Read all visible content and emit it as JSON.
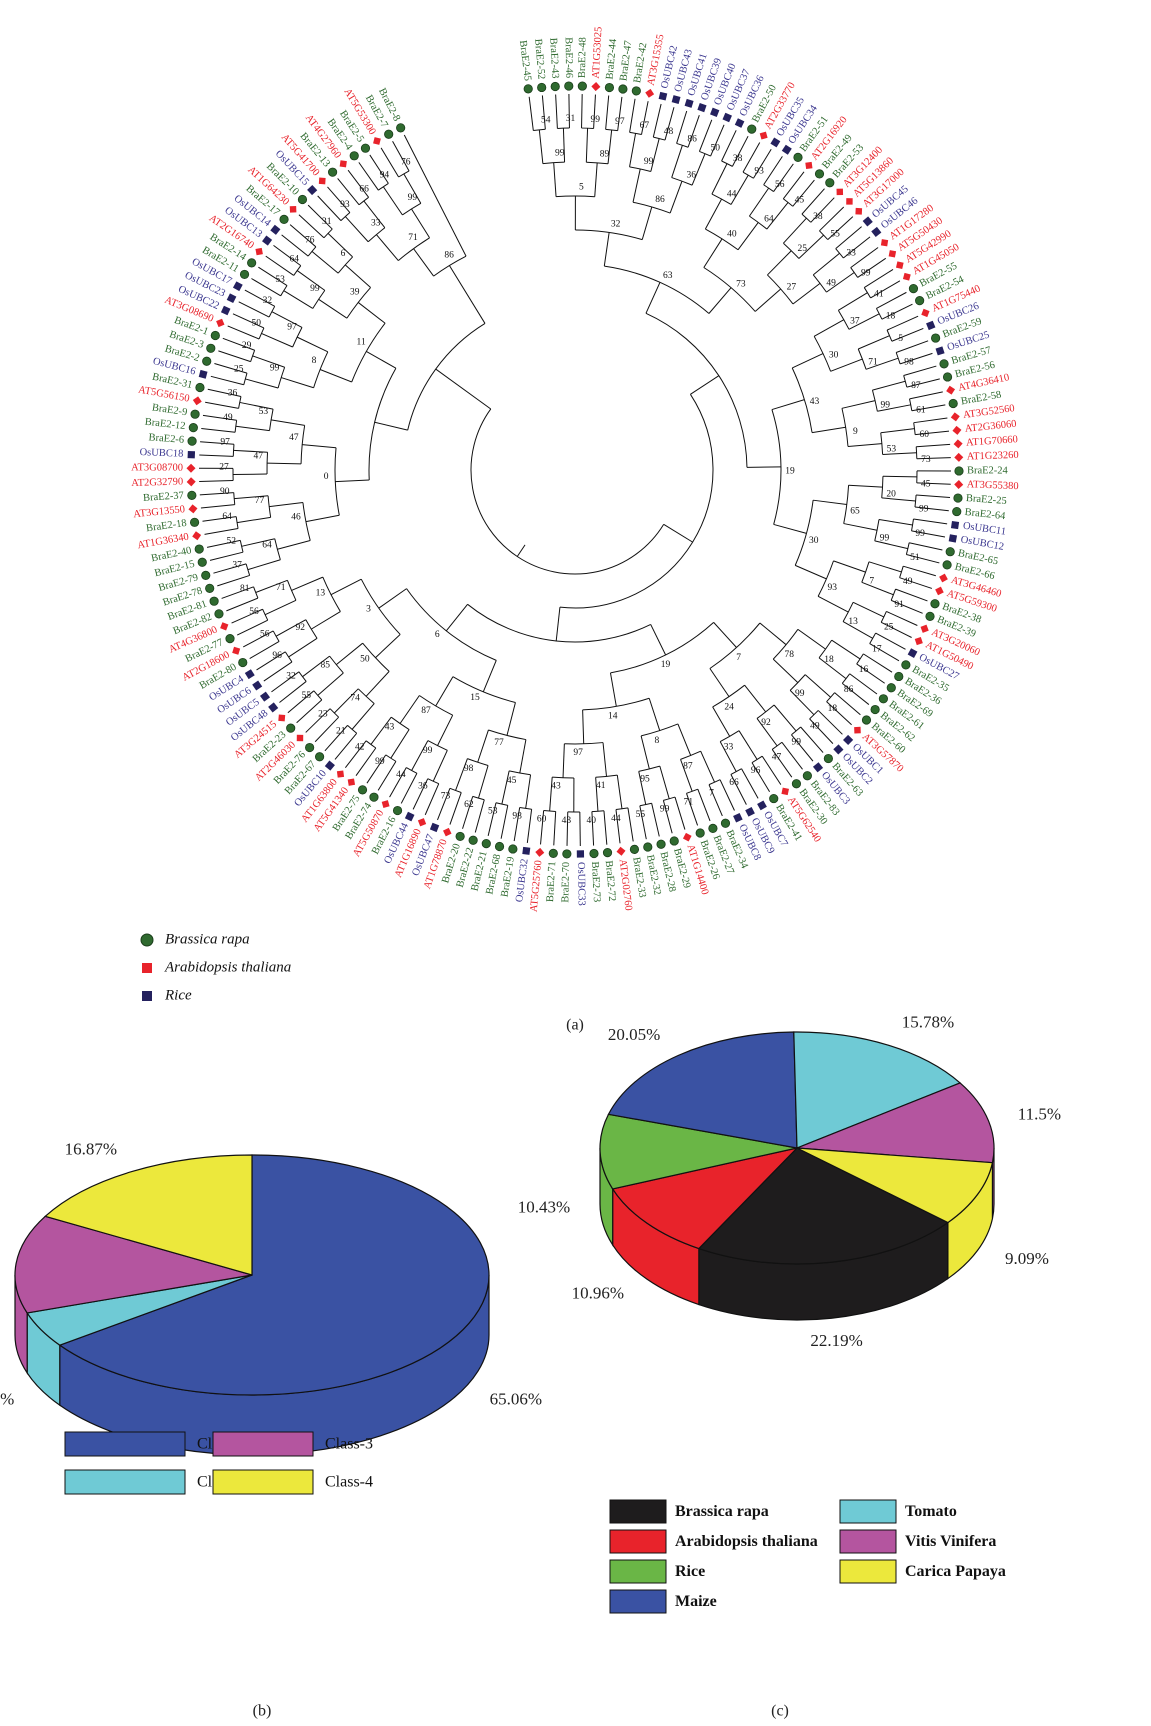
{
  "chart_data": [
    {
      "type": "tree",
      "caption": "(a)",
      "legend": [
        {
          "name": "Brassica rapa",
          "color": "#2f6a2f"
        },
        {
          "name": "Arabidopsis thaliana",
          "color": "#e8232b"
        },
        {
          "name": "Rice",
          "color": "#24215e"
        }
      ],
      "label_colors": [
        "#2f6a2f",
        "#e8232b",
        "#3c3890"
      ],
      "leaves": [
        {
          "label": "BraE2-45",
          "group": 0
        },
        {
          "label": "BraE2-52",
          "group": 0
        },
        {
          "label": "BraE2-43",
          "group": 0
        },
        {
          "label": "BraE2-46",
          "group": 0
        },
        {
          "label": "BraE2-48",
          "group": 0
        },
        {
          "label": "AT1G53025",
          "group": 1
        },
        {
          "label": "BraE2-44",
          "group": 0
        },
        {
          "label": "BraE2-47",
          "group": 0
        },
        {
          "label": "BraE2-42",
          "group": 0
        },
        {
          "label": "AT3G15355",
          "group": 1
        },
        {
          "label": "OsUBC42",
          "group": 2
        },
        {
          "label": "OsUBC43",
          "group": 2
        },
        {
          "label": "OsUBC41",
          "group": 2
        },
        {
          "label": "OsUBC39",
          "group": 2
        },
        {
          "label": "OsUBC40",
          "group": 2
        },
        {
          "label": "OsUBC37",
          "group": 2
        },
        {
          "label": "OsUBC36",
          "group": 2
        },
        {
          "label": "BraE2-50",
          "group": 0
        },
        {
          "label": "AT2G33770",
          "group": 1
        },
        {
          "label": "OsUBC35",
          "group": 2
        },
        {
          "label": "OsUBC34",
          "group": 2
        },
        {
          "label": "BraE2-51",
          "group": 0
        },
        {
          "label": "AT2G16920",
          "group": 1
        },
        {
          "label": "BraE2-49",
          "group": 0
        },
        {
          "label": "BraE2-53",
          "group": 0
        },
        {
          "label": "AT3G12400",
          "group": 1
        },
        {
          "label": "AT5G13860",
          "group": 1
        },
        {
          "label": "AT3G17000",
          "group": 1
        },
        {
          "label": "OsUBC45",
          "group": 2
        },
        {
          "label": "OsUBC46",
          "group": 2
        },
        {
          "label": "AT1G17280",
          "group": 1
        },
        {
          "label": "AT5G50430",
          "group": 1
        },
        {
          "label": "AT5G42990",
          "group": 1
        },
        {
          "label": "AT1G45050",
          "group": 1
        },
        {
          "label": "BraE2-55",
          "group": 0
        },
        {
          "label": "BraE2-54",
          "group": 0
        },
        {
          "label": "AT1G75440",
          "group": 1
        },
        {
          "label": "OsUBC26",
          "group": 2
        },
        {
          "label": "BraE2-59",
          "group": 0
        },
        {
          "label": "OsUBC25",
          "group": 2
        },
        {
          "label": "BraE2-57",
          "group": 0
        },
        {
          "label": "BraE2-56",
          "group": 0
        },
        {
          "label": "AT4G36410",
          "group": 1
        },
        {
          "label": "BraE2-58",
          "group": 0
        },
        {
          "label": "AT3G52560",
          "group": 1
        },
        {
          "label": "AT2G36060",
          "group": 1
        },
        {
          "label": "AT1G70660",
          "group": 1
        },
        {
          "label": "AT1G23260",
          "group": 1
        },
        {
          "label": "BraE2-24",
          "group": 0
        },
        {
          "label": "AT3G55380",
          "group": 1
        },
        {
          "label": "BraE2-25",
          "group": 0
        },
        {
          "label": "BraE2-64",
          "group": 0
        },
        {
          "label": "OsUBC11",
          "group": 2
        },
        {
          "label": "OsUBC12",
          "group": 2
        },
        {
          "label": "BraE2-65",
          "group": 0
        },
        {
          "label": "BraE2-66",
          "group": 0
        },
        {
          "label": "AT3G46460",
          "group": 1
        },
        {
          "label": "AT5G59300",
          "group": 1
        },
        {
          "label": "BraE2-38",
          "group": 0
        },
        {
          "label": "BraE2-39",
          "group": 0
        },
        {
          "label": "AT3G20060",
          "group": 1
        },
        {
          "label": "AT1G50490",
          "group": 1
        },
        {
          "label": "OsUBC27",
          "group": 2
        },
        {
          "label": "BraE2-35",
          "group": 0
        },
        {
          "label": "BraE2-36",
          "group": 0
        },
        {
          "label": "BraE2-69",
          "group": 0
        },
        {
          "label": "BraE2-61",
          "group": 0
        },
        {
          "label": "BraE2-62",
          "group": 0
        },
        {
          "label": "BraE2-60",
          "group": 0
        },
        {
          "label": "AT3G57870",
          "group": 1
        },
        {
          "label": "OsUBC1",
          "group": 2
        },
        {
          "label": "OsUBC2",
          "group": 2
        },
        {
          "label": "BraE2-63",
          "group": 0
        },
        {
          "label": "OsUBC3",
          "group": 2
        },
        {
          "label": "BraE2-83",
          "group": 0
        },
        {
          "label": "BraE2-30",
          "group": 0
        },
        {
          "label": "AT5G62540",
          "group": 1
        },
        {
          "label": "BraE2-41",
          "group": 0
        },
        {
          "label": "OsUBC7",
          "group": 2
        },
        {
          "label": "OsUBC9",
          "group": 2
        },
        {
          "label": "OsUBC8",
          "group": 2
        },
        {
          "label": "BraE2-34",
          "group": 0
        },
        {
          "label": "BraE2-27",
          "group": 0
        },
        {
          "label": "BraE2-26",
          "group": 0
        },
        {
          "label": "AT1G14400",
          "group": 1
        },
        {
          "label": "BraE2-29",
          "group": 0
        },
        {
          "label": "BraE2-28",
          "group": 0
        },
        {
          "label": "BraE2-32",
          "group": 0
        },
        {
          "label": "BraE2-33",
          "group": 0
        },
        {
          "label": "AT2G02760",
          "group": 1
        },
        {
          "label": "BraE2-72",
          "group": 0
        },
        {
          "label": "BraE2-73",
          "group": 0
        },
        {
          "label": "OsUBC33",
          "group": 2
        },
        {
          "label": "BraE2-70",
          "group": 0
        },
        {
          "label": "BraE2-71",
          "group": 0
        },
        {
          "label": "AT5G25760",
          "group": 1
        },
        {
          "label": "OsUBC32",
          "group": 2
        },
        {
          "label": "BraE2-19",
          "group": 0
        },
        {
          "label": "BraE2-68",
          "group": 0
        },
        {
          "label": "BraE2-21",
          "group": 0
        },
        {
          "label": "BraE2-22",
          "group": 0
        },
        {
          "label": "BraE2-20",
          "group": 0
        },
        {
          "label": "AT1G78870",
          "group": 1
        },
        {
          "label": "OsUBC47",
          "group": 2
        },
        {
          "label": "AT1G16890",
          "group": 1
        },
        {
          "label": "OsUBC44",
          "group": 2
        },
        {
          "label": "BraE2-16",
          "group": 0
        },
        {
          "label": "AT5G50870",
          "group": 1
        },
        {
          "label": "BraE2-74",
          "group": 0
        },
        {
          "label": "BraE2-75",
          "group": 0
        },
        {
          "label": "AT5G41340",
          "group": 1
        },
        {
          "label": "AT1G63800",
          "group": 1
        },
        {
          "label": "OsUBC10",
          "group": 2
        },
        {
          "label": "BraE2-67",
          "group": 0
        },
        {
          "label": "BraE2-76",
          "group": 0
        },
        {
          "label": "AT2G46030",
          "group": 1
        },
        {
          "label": "BraE2-23",
          "group": 0
        },
        {
          "label": "AT3G24515",
          "group": 1
        },
        {
          "label": "OsUBC48",
          "group": 2
        },
        {
          "label": "OsUBC5",
          "group": 2
        },
        {
          "label": "OsUBC6",
          "group": 2
        },
        {
          "label": "OsUBC4",
          "group": 2
        },
        {
          "label": "BraE2-80",
          "group": 0
        },
        {
          "label": "AT2G18600",
          "group": 1
        },
        {
          "label": "BraE2-77",
          "group": 0
        },
        {
          "label": "AT4G36800",
          "group": 1
        },
        {
          "label": "BraE2-82",
          "group": 0
        },
        {
          "label": "BraE2-81",
          "group": 0
        },
        {
          "label": "BraE2-78",
          "group": 0
        },
        {
          "label": "BraE2-79",
          "group": 0
        },
        {
          "label": "BraE2-15",
          "group": 0
        },
        {
          "label": "BraE2-40",
          "group": 0
        },
        {
          "label": "AT1G36340",
          "group": 1
        },
        {
          "label": "BraE2-18",
          "group": 0
        },
        {
          "label": "AT3G13550",
          "group": 1
        },
        {
          "label": "BraE2-37",
          "group": 0
        },
        {
          "label": "AT2G32790",
          "group": 1
        },
        {
          "label": "AT3G08700",
          "group": 1
        },
        {
          "label": "OsUBC18",
          "group": 2
        },
        {
          "label": "BraE2-6",
          "group": 0
        },
        {
          "label": "BraE2-12",
          "group": 0
        },
        {
          "label": "BraE2-9",
          "group": 0
        },
        {
          "label": "AT5G56150",
          "group": 1
        },
        {
          "label": "BraE2-31",
          "group": 0
        },
        {
          "label": "OsUBC16",
          "group": 2
        },
        {
          "label": "BraE2-2",
          "group": 0
        },
        {
          "label": "BraE2-3",
          "group": 0
        },
        {
          "label": "BraE2-1",
          "group": 0
        },
        {
          "label": "AT3G08690",
          "group": 1
        },
        {
          "label": "OsUBC22",
          "group": 2
        },
        {
          "label": "OsUBC23",
          "group": 2
        },
        {
          "label": "OsUBC17",
          "group": 2
        },
        {
          "label": "BraE2-11",
          "group": 0
        },
        {
          "label": "BraE2-14",
          "group": 0
        },
        {
          "label": "AT2G16740",
          "group": 1
        },
        {
          "label": "OsUBC13",
          "group": 2
        },
        {
          "label": "OsUBC14",
          "group": 2
        },
        {
          "label": "BraE2-17",
          "group": 0
        },
        {
          "label": "AT1G64230",
          "group": 1
        },
        {
          "label": "BraE2-10",
          "group": 0
        },
        {
          "label": "OsUBC15",
          "group": 2
        },
        {
          "label": "AT5G41700",
          "group": 1
        },
        {
          "label": "BraE2-13",
          "group": 0
        },
        {
          "label": "AT4G27960",
          "group": 1
        },
        {
          "label": "BraE2-4",
          "group": 0
        },
        {
          "label": "BraE2-5",
          "group": 0
        },
        {
          "label": "AT5G53300",
          "group": 1
        },
        {
          "label": "BraE2-7",
          "group": 0
        },
        {
          "label": "BraE2-8",
          "group": 0
        }
      ],
      "bootstrap": [
        54,
        31,
        99,
        97,
        67,
        48,
        86,
        50,
        38,
        93,
        56,
        45,
        38,
        55,
        33,
        99,
        41,
        18,
        5,
        98,
        87,
        61,
        60,
        73,
        45,
        99,
        99,
        51,
        49,
        91,
        25,
        17,
        16,
        86,
        18,
        49,
        99,
        47,
        96,
        66,
        7,
        71,
        99,
        55,
        44,
        40,
        43,
        60,
        98,
        53,
        62,
        73,
        36,
        44,
        99,
        42,
        21,
        23,
        55,
        32,
        96,
        56,
        56,
        81,
        37,
        52,
        64,
        90,
        27,
        97,
        49,
        36,
        25,
        29,
        50,
        32,
        53,
        64,
        76,
        31,
        93,
        66,
        94,
        76,
        99,
        89,
        99,
        36,
        44,
        64,
        25,
        49,
        37,
        71,
        99,
        53,
        20,
        99,
        7,
        13,
        18,
        99,
        92,
        33,
        87,
        95,
        41,
        43,
        45,
        98,
        99,
        43,
        74,
        85,
        92,
        71,
        64,
        77,
        47,
        53,
        99,
        97,
        99,
        6,
        33,
        99,
        5,
        86,
        40,
        27,
        30,
        9,
        65,
        93,
        78,
        24,
        8,
        97,
        77,
        87,
        50,
        13,
        46,
        47,
        8,
        39,
        71,
        32,
        73,
        43,
        30,
        7,
        14,
        15,
        3,
        0,
        11,
        86,
        63,
        19,
        19,
        6
      ]
    },
    {
      "type": "pie",
      "caption": "(b)",
      "categories": [
        "Class-1",
        "Class-2",
        "Class-3",
        "Class-4"
      ],
      "values": [
        65.06,
        4.82,
        13.25,
        16.87
      ],
      "value_labels": [
        "65.06%",
        "4.82%",
        "13.25%",
        "16.87%"
      ],
      "colors": [
        "#3a52a3",
        "#6fcad5",
        "#b4559f",
        "#ece83c"
      ]
    },
    {
      "type": "pie",
      "caption": "(c)",
      "categories": [
        "Brassica rapa",
        "Arabidopsis thaliana",
        "Rice",
        "Maize",
        "Tomato",
        "Vitis Vinifera",
        "Carica Papaya"
      ],
      "values": [
        22.19,
        10.96,
        10.43,
        20.05,
        15.78,
        11.5,
        9.09
      ],
      "value_labels": [
        "22.19%",
        "10.96%",
        "10.43%",
        "20.05%",
        "15.78%",
        "11.5%",
        "9.09%"
      ],
      "colors": [
        "#1e1c1d",
        "#e8232b",
        "#6ab646",
        "#3a52a3",
        "#6fcad5",
        "#b4559f",
        "#ece83c"
      ]
    }
  ]
}
